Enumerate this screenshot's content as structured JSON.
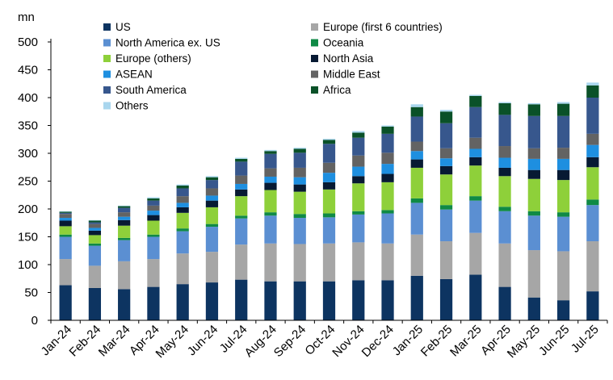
{
  "chart_data": {
    "type": "bar",
    "stacked": true,
    "ylabel": "mn",
    "ylim": [
      0,
      500
    ],
    "yticks": [
      0,
      50,
      100,
      150,
      200,
      250,
      300,
      350,
      400,
      450,
      500
    ],
    "grid": false,
    "legend_position": "top-left",
    "categories": [
      "Jan-24",
      "Feb-24",
      "Mar-24",
      "Apr-24",
      "May-24",
      "Jun-24",
      "Jul-24",
      "Aug-24",
      "Sep-24",
      "Oct-24",
      "Nov-24",
      "Dec-24",
      "Jan-25",
      "Feb-25",
      "Mar-25",
      "Apr-25",
      "May-25",
      "Jun-25",
      "Jul-25"
    ],
    "series": [
      {
        "name": "US",
        "color": "#0d3461",
        "values": [
          63,
          58,
          56,
          60,
          65,
          68,
          73,
          70,
          70,
          70,
          72,
          72,
          80,
          74,
          82,
          60,
          41,
          36,
          52
        ]
      },
      {
        "name": "Europe (first 6 countries)",
        "color": "#a6a6a6",
        "values": [
          47,
          40,
          50,
          50,
          55,
          55,
          63,
          68,
          67,
          68,
          68,
          66,
          74,
          68,
          75,
          78,
          85,
          88,
          90
        ]
      },
      {
        "name": "North America ex. US",
        "color": "#5b8fd2",
        "values": [
          40,
          36,
          38,
          40,
          40,
          45,
          47,
          50,
          47,
          47,
          50,
          54,
          57,
          57,
          58,
          58,
          62,
          62,
          65
        ]
      },
      {
        "name": "Oceania",
        "color": "#0f8a45",
        "values": [
          4,
          4,
          4,
          4,
          5,
          5,
          5,
          6,
          7,
          7,
          6,
          6,
          8,
          8,
          8,
          8,
          8,
          8,
          10
        ]
      },
      {
        "name": "Europe (others)",
        "color": "#8ed03a",
        "values": [
          15,
          15,
          22,
          25,
          28,
          30,
          35,
          40,
          40,
          43,
          50,
          50,
          55,
          55,
          55,
          55,
          58,
          58,
          58
        ]
      },
      {
        "name": "North Asia",
        "color": "#071a33",
        "values": [
          10,
          8,
          10,
          10,
          10,
          12,
          12,
          13,
          13,
          13,
          13,
          15,
          15,
          15,
          15,
          15,
          16,
          18,
          18
        ]
      },
      {
        "name": "ASEAN",
        "color": "#1e8fe0",
        "values": [
          5,
          5,
          6,
          8,
          8,
          9,
          10,
          11,
          13,
          17,
          17,
          18,
          15,
          14,
          15,
          18,
          20,
          20,
          22
        ]
      },
      {
        "name": "Middle East",
        "color": "#636363",
        "values": [
          7,
          7,
          8,
          9,
          12,
          13,
          15,
          15,
          17,
          18,
          20,
          20,
          17,
          18,
          20,
          21,
          19,
          20,
          20
        ]
      },
      {
        "name": "South America",
        "color": "#37578d",
        "values": [
          2,
          3,
          8,
          9,
          14,
          15,
          25,
          26,
          27,
          34,
          32,
          34,
          45,
          45,
          55,
          56,
          58,
          57,
          65
        ]
      },
      {
        "name": "Africa",
        "color": "#0a5128",
        "values": [
          2,
          3,
          3,
          4,
          5,
          5,
          5,
          5,
          7,
          7,
          9,
          13,
          17,
          21,
          20,
          21,
          21,
          22,
          22
        ]
      },
      {
        "name": "Others",
        "color": "#a9d6ee",
        "values": [
          1,
          1,
          1,
          2,
          2,
          2,
          2,
          2,
          2,
          2,
          3,
          2,
          5,
          3,
          2,
          2,
          2,
          3,
          5
        ]
      }
    ]
  }
}
